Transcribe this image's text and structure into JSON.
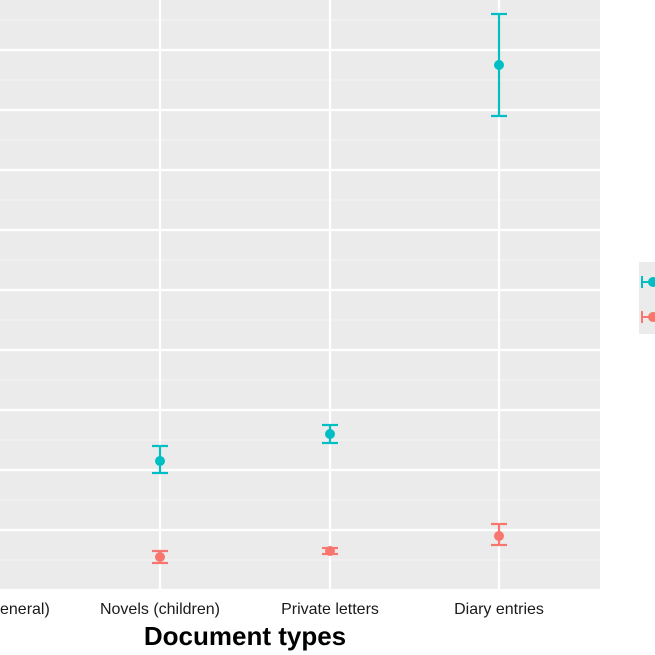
{
  "chart_data": {
    "type": "scatter",
    "subtype": "point-with-errorbars",
    "title": "",
    "xlabel": "Document types",
    "ylabel": "",
    "categories": [
      "eneral)",
      "Novels (children)",
      "Private letters",
      "Diary entries"
    ],
    "ylim": [
      0,
      100
    ],
    "grid": true,
    "legend": "right",
    "series": [
      {
        "color": "#00BFC4",
        "points": [
          {
            "category": "Novels (children)",
            "y": 21.5,
            "ymin": 19.5,
            "ymax": 24.0
          },
          {
            "category": "Private letters",
            "y": 26.0,
            "ymin": 24.5,
            "ymax": 27.5
          },
          {
            "category": "Diary entries",
            "y": 87.5,
            "ymin": 79.0,
            "ymax": 96.0
          }
        ]
      },
      {
        "color": "#F8766D",
        "points": [
          {
            "category": "Novels (children)",
            "y": 5.5,
            "ymin": 4.5,
            "ymax": 6.5
          },
          {
            "category": "Private letters",
            "y": 6.5,
            "ymin": 6.0,
            "ymax": 7.0
          },
          {
            "category": "Diary entries",
            "y": 9.0,
            "ymin": 7.5,
            "ymax": 11.0
          }
        ]
      }
    ]
  }
}
